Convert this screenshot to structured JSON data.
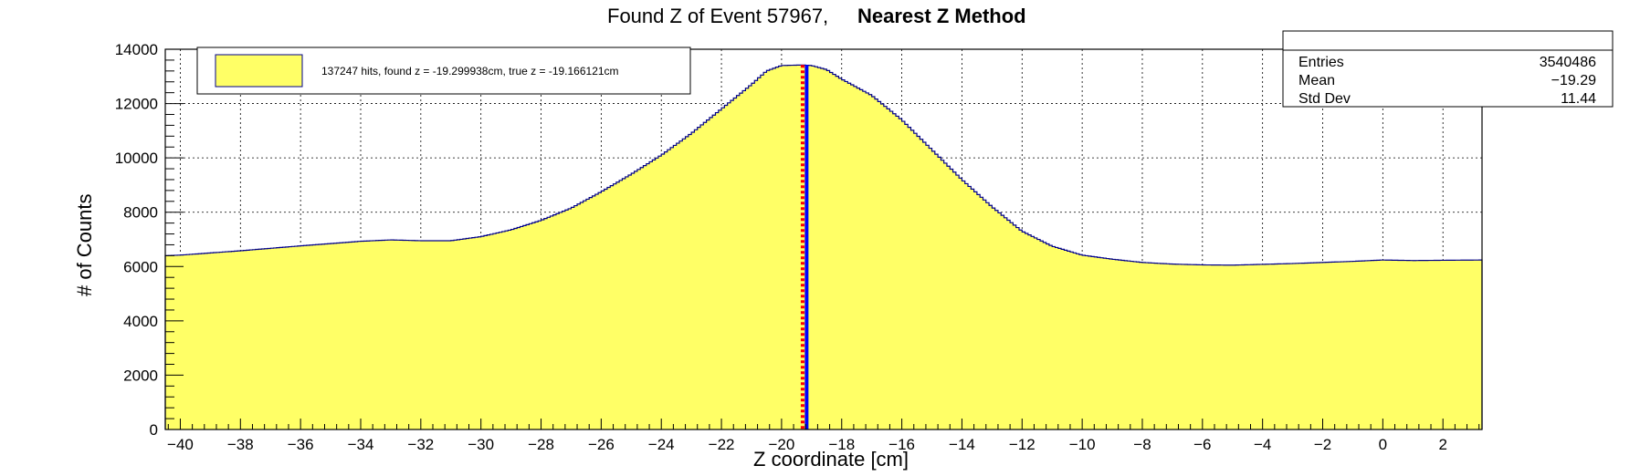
{
  "chart_data": {
    "type": "histogram",
    "title_plain": "Found Z of Event 57967,",
    "title_bold": "Nearest Z Method",
    "xlabel": "Z coordinate [cm]",
    "ylabel": "# of Counts",
    "xlim": [
      -40.5,
      3.3
    ],
    "ylim": [
      0,
      14000
    ],
    "x_tick_values": [
      -40,
      -38,
      -36,
      -34,
      -32,
      -30,
      -28,
      -26,
      -24,
      -22,
      -20,
      -18,
      -16,
      -14,
      -12,
      -10,
      -8,
      -6,
      -4,
      -2,
      0,
      2
    ],
    "x_tick_labels": [
      "−40",
      "−38",
      "−36",
      "−34",
      "−32",
      "−30",
      "−28",
      "−26",
      "−24",
      "−22",
      "−20",
      "−18",
      "−16",
      "−14",
      "−12",
      "−10",
      "−8",
      "−6",
      "−4",
      "−2",
      "0",
      "2"
    ],
    "y_tick_values": [
      0,
      2000,
      4000,
      6000,
      8000,
      10000,
      12000,
      14000
    ],
    "y_tick_labels": [
      "0",
      "2000",
      "4000",
      "6000",
      "8000",
      "10000",
      "12000",
      "14000"
    ],
    "grid": true,
    "fill_color": "#ffff66",
    "line_color": "#00008b",
    "profile": [
      [
        -40.5,
        6400
      ],
      [
        -40,
        6420
      ],
      [
        -38,
        6580
      ],
      [
        -36,
        6760
      ],
      [
        -34,
        6930
      ],
      [
        -33,
        6980
      ],
      [
        -32,
        6950
      ],
      [
        -31,
        6950
      ],
      [
        -30,
        7100
      ],
      [
        -29,
        7350
      ],
      [
        -28,
        7700
      ],
      [
        -27,
        8150
      ],
      [
        -26,
        8750
      ],
      [
        -25,
        9400
      ],
      [
        -24,
        10100
      ],
      [
        -23,
        10900
      ],
      [
        -22,
        11800
      ],
      [
        -21,
        12700
      ],
      [
        -20.5,
        13200
      ],
      [
        -20,
        13400
      ],
      [
        -19.3,
        13420
      ],
      [
        -19,
        13400
      ],
      [
        -18.5,
        13250
      ],
      [
        -18,
        12900
      ],
      [
        -17,
        12300
      ],
      [
        -16,
        11400
      ],
      [
        -15,
        10300
      ],
      [
        -14,
        9200
      ],
      [
        -13,
        8200
      ],
      [
        -12,
        7300
      ],
      [
        -11,
        6750
      ],
      [
        -10,
        6420
      ],
      [
        -9,
        6270
      ],
      [
        -8,
        6150
      ],
      [
        -7,
        6090
      ],
      [
        -6,
        6060
      ],
      [
        -5,
        6050
      ],
      [
        -4,
        6080
      ],
      [
        -3,
        6110
      ],
      [
        -2,
        6150
      ],
      [
        -1,
        6190
      ],
      [
        0,
        6240
      ],
      [
        1,
        6220
      ],
      [
        2,
        6230
      ],
      [
        3.3,
        6240
      ]
    ],
    "vertical_lines": [
      {
        "x": -19.299938,
        "color": "#ff0000",
        "style": "dashed"
      },
      {
        "x": -19.166121,
        "color": "#0000ff",
        "style": "solid"
      }
    ],
    "legend": {
      "placement": "top-left",
      "label": "137247 hits, found z = -19.299938cm, true z = -19.166121cm",
      "swatch_color": "#ffff66"
    },
    "stats_box": {
      "placement": "top-right",
      "rows": [
        {
          "label": "Entries",
          "value": "3540486"
        },
        {
          "label": "Mean",
          "value": "−19.29"
        },
        {
          "label": "Std Dev",
          "value": "11.44"
        }
      ]
    }
  }
}
